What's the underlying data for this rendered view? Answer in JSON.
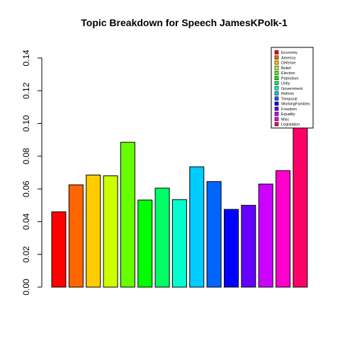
{
  "chart_data": {
    "type": "bar",
    "title": "Topic Breakdown for Speech JamesKPolk-1",
    "xlabel": "",
    "ylabel": "",
    "ylim": [
      0,
      0.14
    ],
    "yticks": [
      "0.00",
      "0.02",
      "0.04",
      "0.06",
      "0.08",
      "0.10",
      "0.12",
      "0.14"
    ],
    "ytick_values": [
      0,
      0.02,
      0.04,
      0.06,
      0.08,
      0.1,
      0.12,
      0.14
    ],
    "grid": false,
    "legend_position": "top-right",
    "categories": [
      "Economy",
      "America",
      "Defense",
      "Belief",
      "Election",
      "Patriotism",
      "Unity",
      "Government",
      "Reform",
      "Temporal",
      "WorkingFamilies",
      "Freedom",
      "Equality",
      "Misc",
      "Legislation"
    ],
    "values": [
      0.046,
      0.0625,
      0.0685,
      0.068,
      0.0885,
      0.0532,
      0.0605,
      0.0535,
      0.0735,
      0.0645,
      0.0475,
      0.05,
      0.063,
      0.0712,
      0.112
    ],
    "colors": [
      "#FF0000",
      "#FF6600",
      "#FFCC00",
      "#CCFF00",
      "#66FF00",
      "#00FF00",
      "#00FF66",
      "#00FFCC",
      "#00CCFF",
      "#0066FF",
      "#0000FF",
      "#6600FF",
      "#CC00FF",
      "#FF00CC",
      "#FF0066"
    ]
  }
}
